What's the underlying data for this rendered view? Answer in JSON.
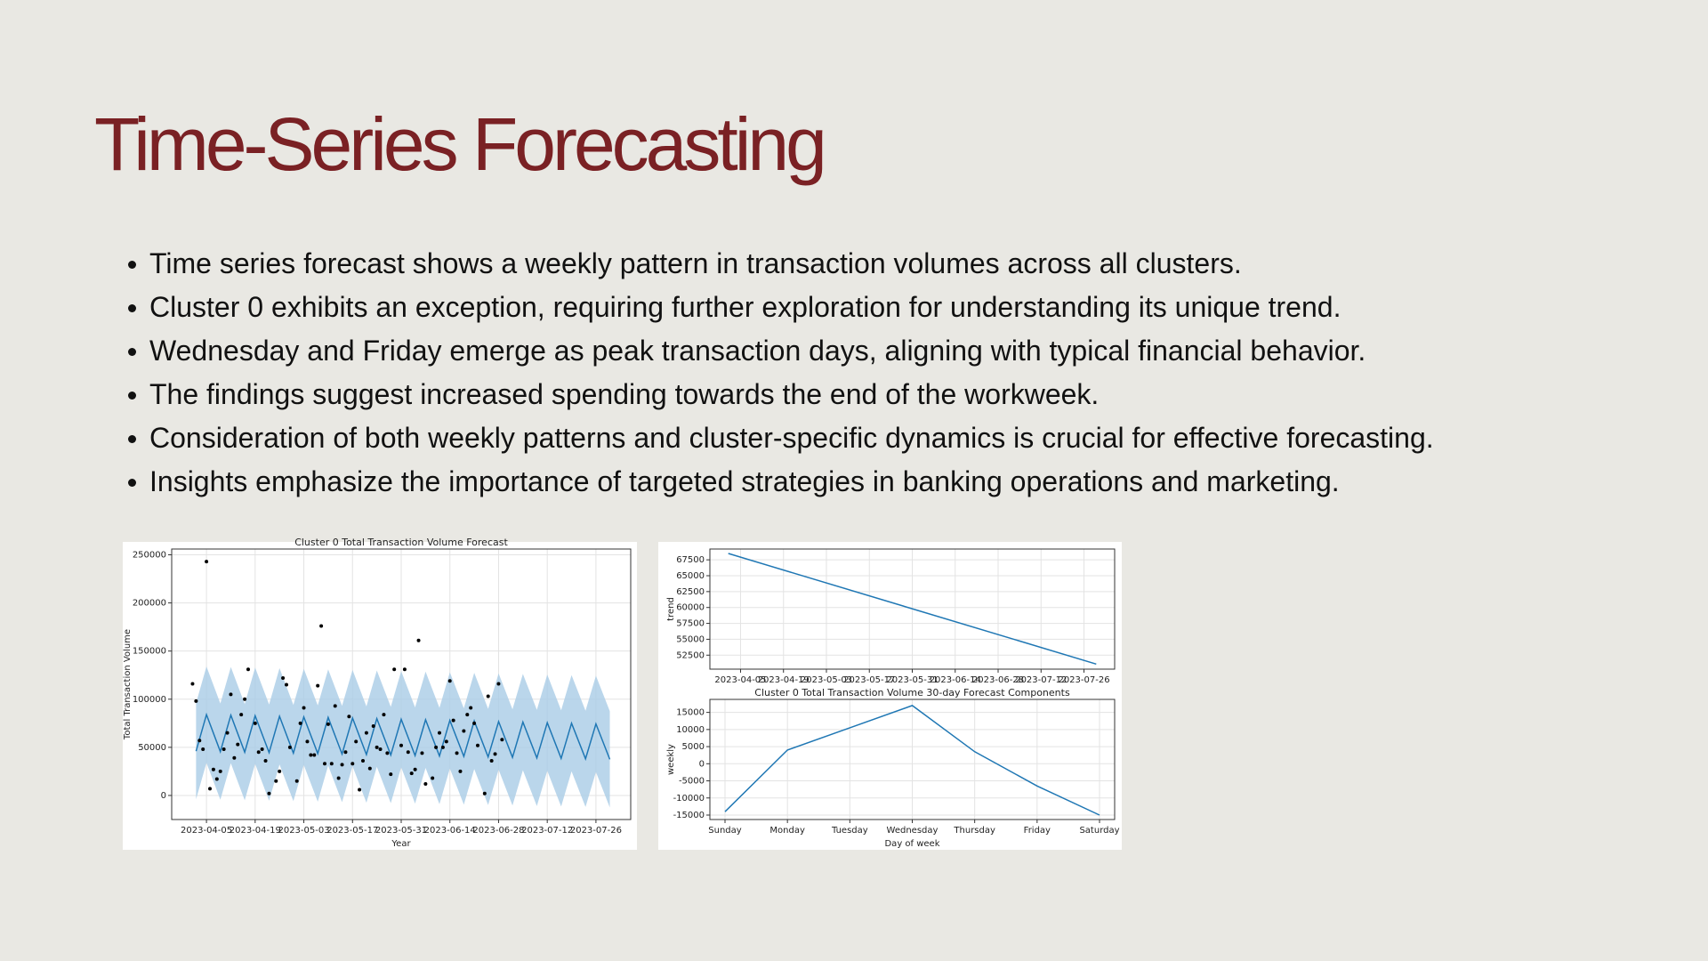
{
  "slide": {
    "title": "Time-Series Forecasting",
    "bullets": [
      "Time series forecast shows a weekly pattern in transaction volumes across all clusters.",
      "Cluster 0 exhibits an exception, requiring further exploration for understanding its unique trend.",
      "Wednesday and Friday emerge as peak transaction days, aligning with typical financial behavior.",
      "The findings suggest increased spending towards the end of the workweek.",
      "Consideration of both weekly patterns and cluster-specific dynamics is crucial for effective forecasting.",
      "Insights emphasize the importance of targeted strategies in banking operations and marketing."
    ]
  },
  "chart_data": [
    {
      "type": "forecast",
      "title": "Cluster 0 Total Transaction Volume Forecast",
      "x_label": "Year",
      "y_label": "Total Transaction Volume",
      "xlim": [
        "2023-03-26",
        "2023-08-05"
      ],
      "xticks": [
        "2023-04-05",
        "2023-04-19",
        "2023-05-03",
        "2023-05-17",
        "2023-05-31",
        "2023-06-14",
        "2023-06-28",
        "2023-07-12",
        "2023-07-26"
      ],
      "ylim": [
        -25000,
        256000
      ],
      "yticks": [
        0,
        50000,
        100000,
        150000,
        200000,
        250000
      ],
      "grid": true,
      "observed": {
        "color": "#000000",
        "x": [
          "2023-04-01",
          "2023-04-02",
          "2023-04-03",
          "2023-04-04",
          "2023-04-05",
          "2023-04-06",
          "2023-04-07",
          "2023-04-08",
          "2023-04-09",
          "2023-04-10",
          "2023-04-11",
          "2023-04-12",
          "2023-04-13",
          "2023-04-14",
          "2023-04-15",
          "2023-04-16",
          "2023-04-17",
          "2023-04-19",
          "2023-04-20",
          "2023-04-21",
          "2023-04-22",
          "2023-04-23",
          "2023-04-25",
          "2023-04-26",
          "2023-04-27",
          "2023-04-28",
          "2023-04-29",
          "2023-05-01",
          "2023-05-02",
          "2023-05-03",
          "2023-05-04",
          "2023-05-05",
          "2023-05-06",
          "2023-05-07",
          "2023-05-08",
          "2023-05-09",
          "2023-05-10",
          "2023-05-11",
          "2023-05-12",
          "2023-05-13",
          "2023-05-14",
          "2023-05-15",
          "2023-05-16",
          "2023-05-17",
          "2023-05-18",
          "2023-05-19",
          "2023-05-20",
          "2023-05-21",
          "2023-05-22",
          "2023-05-23",
          "2023-05-24",
          "2023-05-25",
          "2023-05-26",
          "2023-05-27",
          "2023-05-28",
          "2023-05-29",
          "2023-05-31",
          "2023-06-01",
          "2023-06-02",
          "2023-06-03",
          "2023-06-04",
          "2023-06-05",
          "2023-06-06",
          "2023-06-07",
          "2023-06-09",
          "2023-06-10",
          "2023-06-11",
          "2023-06-12",
          "2023-06-13",
          "2023-06-14",
          "2023-06-15",
          "2023-06-16",
          "2023-06-17",
          "2023-06-18",
          "2023-06-19",
          "2023-06-20",
          "2023-06-21",
          "2023-06-22",
          "2023-06-24",
          "2023-06-25",
          "2023-06-26",
          "2023-06-27",
          "2023-06-28",
          "2023-06-29"
        ],
        "values": [
          116000,
          98000,
          57000,
          48000,
          243000,
          7000,
          27000,
          17000,
          25000,
          48000,
          65000,
          105000,
          39000,
          53000,
          84000,
          100000,
          131000,
          75000,
          45000,
          48000,
          36000,
          2000,
          15000,
          25000,
          122000,
          115000,
          50000,
          15000,
          75000,
          91000,
          56000,
          42000,
          42000,
          114000,
          176000,
          33000,
          74000,
          33000,
          93000,
          18000,
          32000,
          45000,
          82000,
          33000,
          56000,
          6000,
          36000,
          65000,
          28000,
          72000,
          50000,
          48000,
          84000,
          44000,
          22000,
          131000,
          52000,
          131000,
          45000,
          23000,
          27000,
          161000,
          44000,
          12000,
          18000,
          50000,
          65000,
          50000,
          56000,
          119000,
          78000,
          44000,
          25000,
          67000,
          84000,
          91000,
          75000,
          52000,
          2000,
          103000,
          36000,
          43000,
          116000,
          58000
        ]
      },
      "forecast": {
        "color": "#1f77b4",
        "band_color": "#a9cce6",
        "x": [
          "2023-04-02",
          "2023-04-05",
          "2023-04-09",
          "2023-04-12",
          "2023-04-16",
          "2023-04-19",
          "2023-04-23",
          "2023-04-26",
          "2023-04-30",
          "2023-05-03",
          "2023-05-07",
          "2023-05-10",
          "2023-05-14",
          "2023-05-17",
          "2023-05-21",
          "2023-05-24",
          "2023-05-28",
          "2023-05-31",
          "2023-06-04",
          "2023-06-07",
          "2023-06-11",
          "2023-06-14",
          "2023-06-18",
          "2023-06-21",
          "2023-06-25",
          "2023-06-28",
          "2023-07-02",
          "2023-07-05",
          "2023-07-09",
          "2023-07-12",
          "2023-07-16",
          "2023-07-19",
          "2023-07-23",
          "2023-07-26",
          "2023-07-30"
        ],
        "values": [
          46000,
          84000,
          45500,
          83400,
          45000,
          82800,
          44500,
          82200,
          44000,
          81600,
          43500,
          81000,
          43000,
          80400,
          42500,
          79800,
          42000,
          79200,
          41500,
          78600,
          41000,
          78000,
          40500,
          77400,
          40000,
          76800,
          39500,
          76200,
          39000,
          75600,
          38500,
          75000,
          38000,
          74400,
          37500
        ],
        "upper": [
          96000,
          134000,
          95500,
          133400,
          95000,
          132800,
          94500,
          132200,
          94000,
          131600,
          93500,
          131000,
          93000,
          130400,
          92500,
          129800,
          92000,
          129200,
          91500,
          128600,
          91000,
          128000,
          90500,
          127400,
          90000,
          126800,
          89500,
          126200,
          89000,
          125600,
          88500,
          125000,
          88000,
          124400,
          87500
        ],
        "lower": [
          -4000,
          34000,
          -4500,
          33400,
          -5000,
          32800,
          -5500,
          32200,
          -6000,
          31600,
          -6500,
          31000,
          -7000,
          30400,
          -7500,
          29800,
          -8000,
          29200,
          -8500,
          28600,
          -9000,
          28000,
          -9500,
          27400,
          -10000,
          26800,
          -10500,
          26200,
          -11000,
          25600,
          -11500,
          25000,
          -12000,
          24400,
          -12500
        ]
      }
    },
    {
      "type": "line",
      "y_label": "trend",
      "color": "#1f77b4",
      "x": [
        "2023-04-01",
        "2023-07-30"
      ],
      "values": [
        68500,
        51100
      ],
      "xlim": [
        "2023-03-26",
        "2023-08-05"
      ],
      "xticks": [
        "2023-04-05",
        "2023-04-19",
        "2023-05-03",
        "2023-05-17",
        "2023-05-31",
        "2023-06-14",
        "2023-06-28",
        "2023-07-12",
        "2023-07-26"
      ],
      "ylim": [
        50300,
        69200
      ],
      "yticks": [
        52500,
        55000,
        57500,
        60000,
        62500,
        65000,
        67500
      ],
      "grid": true
    },
    {
      "type": "line",
      "title": "Cluster 0 Total Transaction Volume 30-day Forecast Components",
      "x_label": "Day of week",
      "y_label": "weekly",
      "color": "#1f77b4",
      "categories": [
        "Sunday",
        "Monday",
        "Tuesday",
        "Wednesday",
        "Thursday",
        "Friday",
        "Saturday"
      ],
      "values": [
        -14000,
        4000,
        10500,
        17000,
        3500,
        -6500,
        -15000
      ],
      "ylim": [
        -16300,
        18800
      ],
      "yticks": [
        -15000,
        -10000,
        -5000,
        0,
        5000,
        10000,
        15000
      ],
      "grid": true
    }
  ]
}
